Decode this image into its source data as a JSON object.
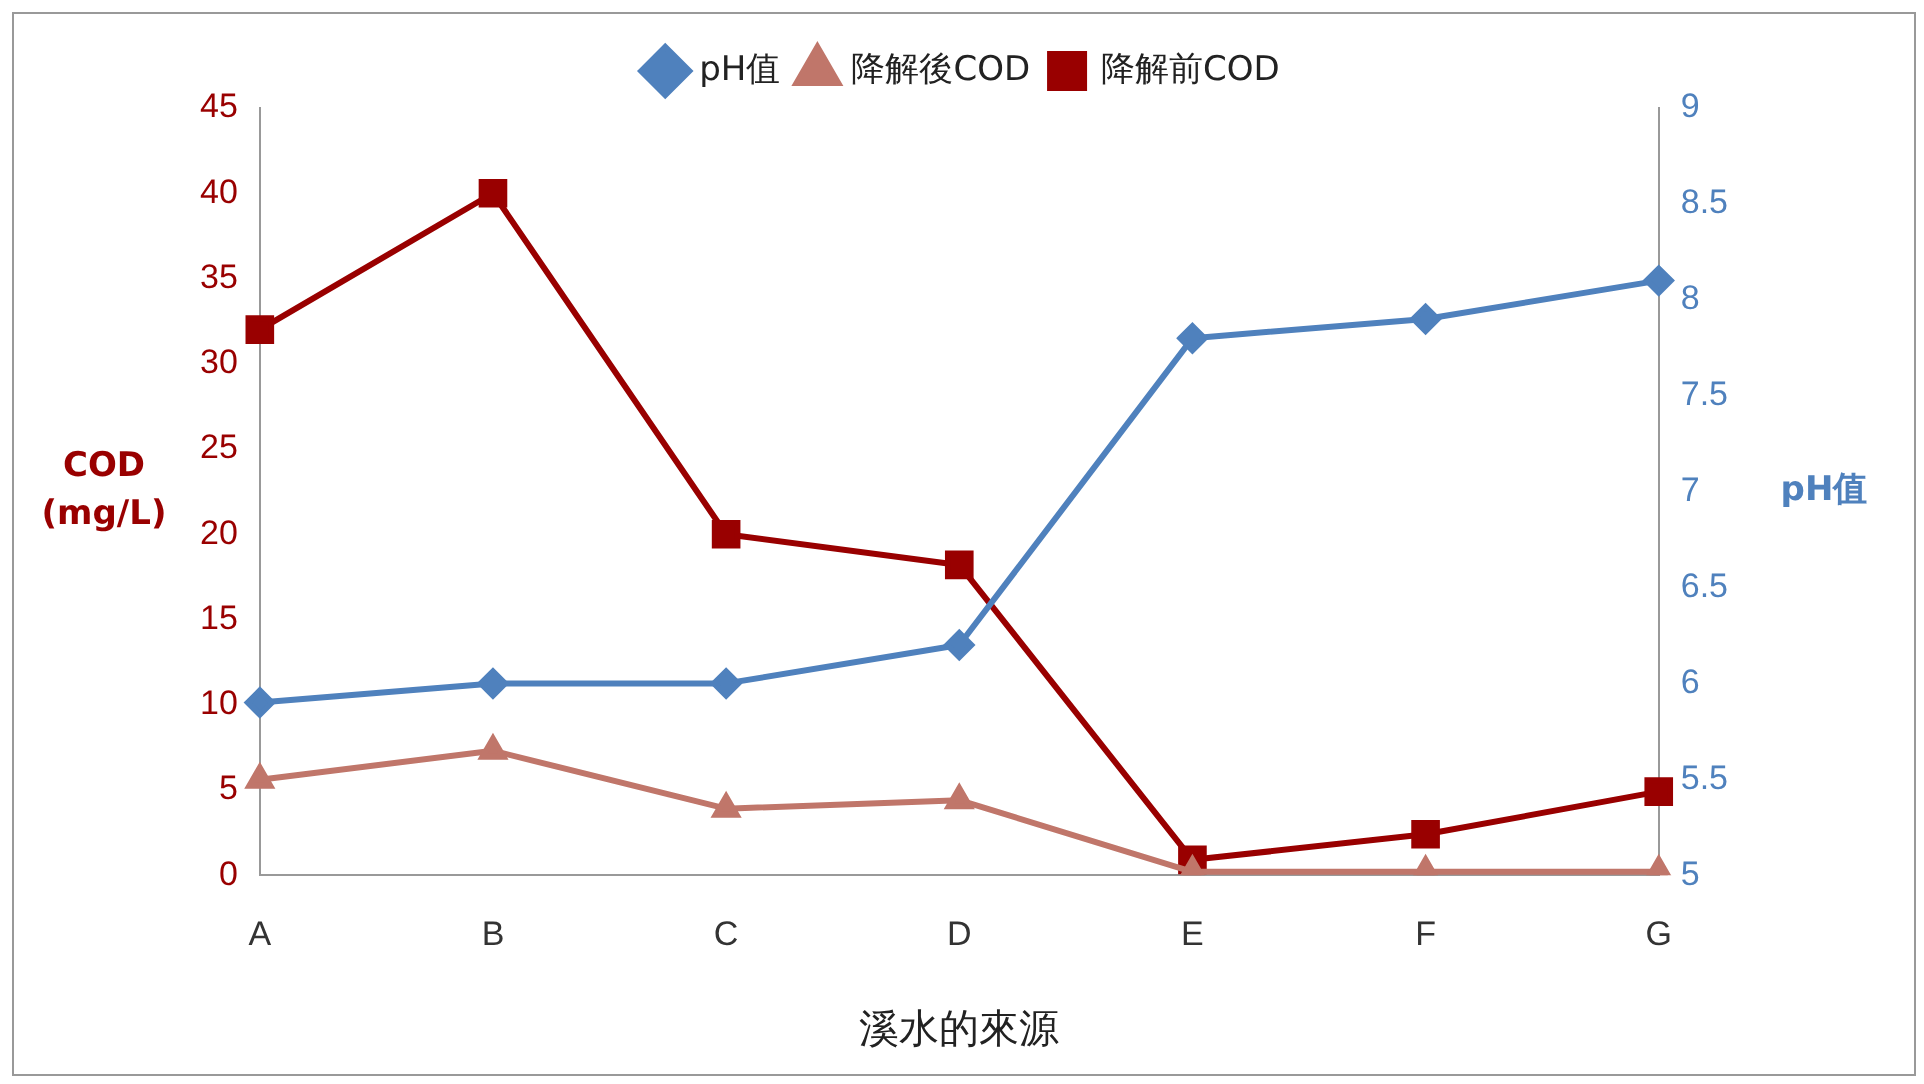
{
  "chart_data": {
    "type": "line",
    "xlabel": "溪水的來源",
    "ylabel": "COD\n(mg/L)",
    "y2label": "pH值",
    "categories": [
      "A",
      "B",
      "C",
      "D",
      "E",
      "F",
      "G"
    ],
    "series": [
      {
        "name": "降解前COD",
        "color": "#990000",
        "marker": "square",
        "values": [
          32,
          40,
          20,
          18.2,
          0.9,
          2.4,
          4.9
        ]
      },
      {
        "name": "降解後COD",
        "color": "#c0766a",
        "marker": "triangle",
        "values": [
          5.6,
          7.3,
          3.9,
          4.4,
          0.2,
          0.2,
          0.2
        ]
      },
      {
        "name": "pH值",
        "color": "#4f81bd",
        "marker": "diamond",
        "axis": "y2",
        "values": [
          5.9,
          6.0,
          6.0,
          6.2,
          7.8,
          7.9,
          8.1
        ]
      }
    ],
    "ylim": [
      0,
      45
    ],
    "yticks": [
      0,
      5,
      10,
      15,
      20,
      25,
      30,
      35,
      40,
      45
    ],
    "y2lim": [
      5,
      9
    ],
    "y2ticks": [
      5,
      5.5,
      6,
      6.5,
      7,
      7.5,
      8,
      8.5,
      9
    ],
    "grid": false,
    "legend": "top",
    "line_style": "solid"
  }
}
